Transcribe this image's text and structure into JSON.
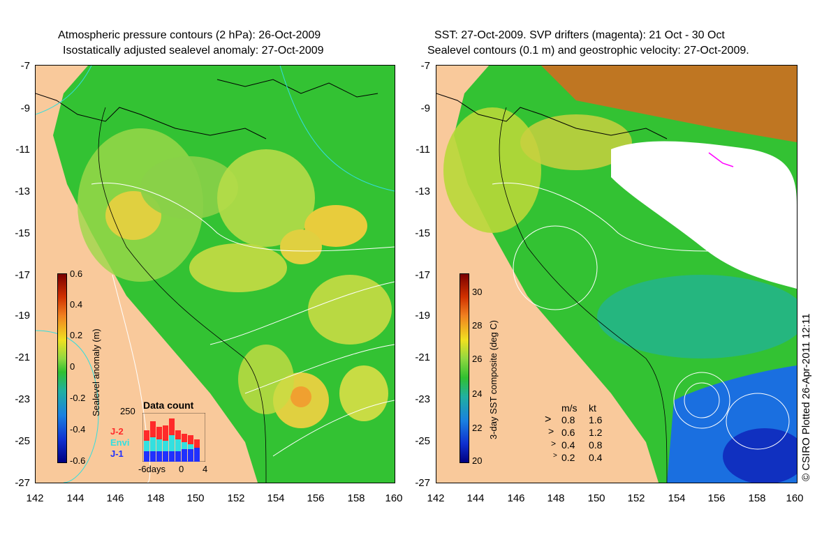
{
  "left_panel": {
    "title_line1": "Atmospheric pressure contours (2 hPa): 26-Oct-2009",
    "title_line2": "Isostatically adjusted sealevel anomaly: 27-Oct-2009",
    "y_ticks": [
      "-7",
      "-9",
      "-11",
      "-13",
      "-15",
      "-17",
      "-19",
      "-21",
      "-23",
      "-25",
      "-27"
    ],
    "x_ticks": [
      "142",
      "144",
      "146",
      "148",
      "150",
      "152",
      "154",
      "156",
      "158",
      "160"
    ],
    "colorbar": {
      "label": "Sealevel anomaly (m)",
      "ticks": [
        "0.6",
        "0.4",
        "0.2",
        "0",
        "-0.2",
        "-0.4",
        "-0.6"
      ]
    },
    "data_count": {
      "title": "Data count",
      "max_label": "250",
      "x_labels": [
        "-6days",
        "0",
        "4"
      ],
      "legend": [
        {
          "label": "J-2",
          "color": "#ff2a2a"
        },
        {
          "label": "Envi",
          "color": "#33e0e0"
        },
        {
          "label": "J-1",
          "color": "#2030ff"
        }
      ]
    }
  },
  "right_panel": {
    "title_line1": "SST: 27-Oct-2009. SVP drifters (magenta): 21 Oct - 30 Oct",
    "title_line2": "Sealevel contours (0.1 m) and geostrophic velocity: 27-Oct-2009.",
    "y_ticks": [
      "-7",
      "-9",
      "-11",
      "-13",
      "-15",
      "-17",
      "-19",
      "-21",
      "-23",
      "-25",
      "-27"
    ],
    "x_ticks": [
      "142",
      "144",
      "146",
      "148",
      "150",
      "152",
      "154",
      "156",
      "158",
      "160"
    ],
    "colorbar": {
      "label": "3-day SST composite (deg C)",
      "ticks": [
        "30",
        "28",
        "26",
        "24",
        "22",
        "20"
      ]
    },
    "velocity_legend": {
      "header_ms": "m/s",
      "header_kt": "kt",
      "rows": [
        {
          "ms": "0.8",
          "kt": "1.6"
        },
        {
          "ms": "0.6",
          "kt": "1.2"
        },
        {
          "ms": "0.4",
          "kt": "0.8"
        },
        {
          "ms": "0.2",
          "kt": "0.4"
        }
      ]
    }
  },
  "credit": "© CSIRO Plotted 26-Apr-2011 12:11",
  "colors": {
    "land": "#f9c99b",
    "ocean_green": "#33c233",
    "anomaly_yellow": "#d8e040",
    "cold_blue": "#1a6fe0",
    "cloud_white": "#ffffff",
    "contour_cyan": "#33dddd"
  }
}
